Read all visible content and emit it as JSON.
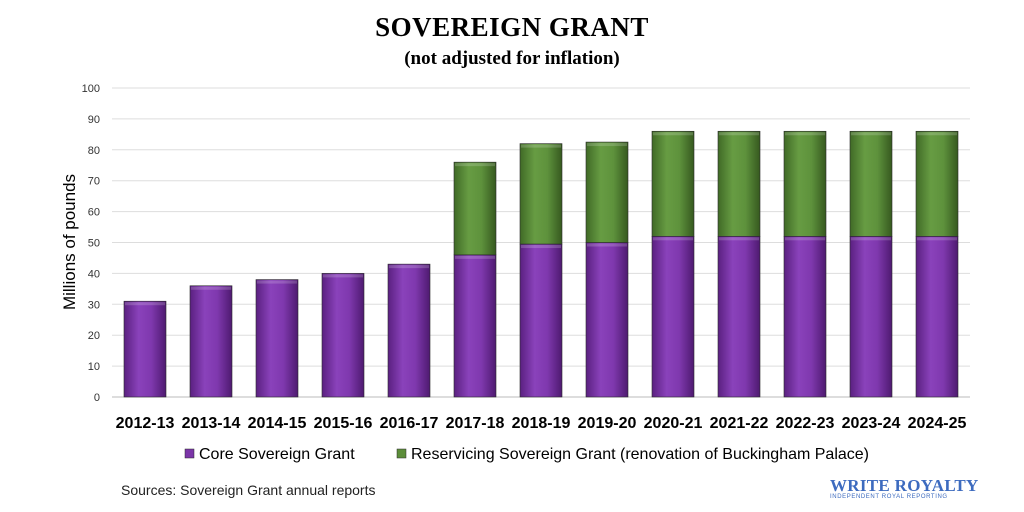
{
  "chart_data": {
    "type": "bar",
    "stacked": true,
    "title": "SOVEREIGN GRANT",
    "subtitle": "(not adjusted for inflation)",
    "xlabel": "",
    "ylabel": "Millions of pounds",
    "ylim": [
      0,
      100
    ],
    "yticks": [
      0,
      10,
      20,
      30,
      40,
      50,
      60,
      70,
      80,
      90,
      100
    ],
    "grid": true,
    "legend_position": "bottom",
    "categories": [
      "2012-13",
      "2013-14",
      "2014-15",
      "2015-16",
      "2016-17",
      "2017-18",
      "2018-19",
      "2019-20",
      "2020-21",
      "2021-22",
      "2022-23",
      "2023-24",
      "2024-25"
    ],
    "series": [
      {
        "name": "Core Sovereign Grant",
        "color": "#7b35a8",
        "values": [
          31,
          36,
          38,
          40,
          43,
          46,
          49.5,
          50,
          52,
          52,
          52,
          52,
          52
        ]
      },
      {
        "name": "Reservicing Sovereign Grant (renovation of Buckingham Palace)",
        "color": "#5c8d3a",
        "values": [
          0,
          0,
          0,
          0,
          0,
          30,
          32.5,
          32.5,
          34,
          34,
          34,
          34,
          34
        ]
      }
    ],
    "source": "Sources: Sovereign Grant annual reports"
  },
  "brand": {
    "name": "WRITE ROYALTY",
    "tagline": "INDEPENDENT ROYAL REPORTING"
  }
}
